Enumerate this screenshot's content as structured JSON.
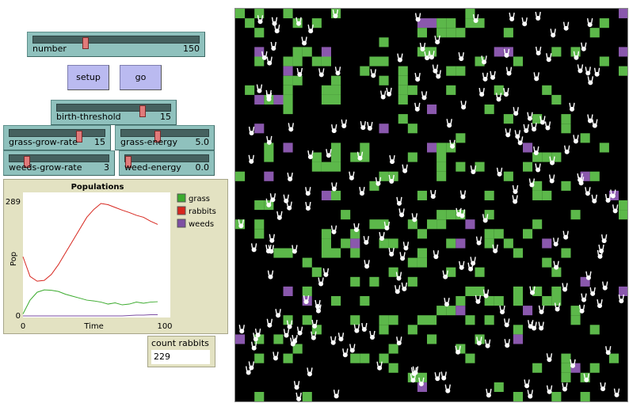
{
  "sliders": [
    {
      "label": "number",
      "value": 150
    },
    {
      "label": "birth-threshold",
      "value": 15
    },
    {
      "label": "grass-grow-rate",
      "value": 15
    },
    {
      "label": "grass-energy",
      "value": "5.0"
    },
    {
      "label": "weeds-grow-rate",
      "value": 3
    },
    {
      "label": "weed-energy",
      "value": "0.0"
    }
  ],
  "buttons": [
    "setup",
    "go"
  ],
  "monitor": {
    "label": "count rabbits",
    "value": 229
  },
  "chart_data": {
    "type": "line",
    "title": "Populations",
    "x_label": "Time",
    "y_label": "Pop",
    "x": [
      0,
      5,
      10,
      15,
      20,
      25,
      30,
      35,
      40,
      45,
      50,
      55,
      60,
      65,
      70,
      75,
      80,
      85,
      90,
      95
    ],
    "xlim": [
      0,
      100
    ],
    "xticks": [
      0,
      100
    ],
    "ylim": [
      0,
      289
    ],
    "yticks": [
      0,
      289
    ],
    "series": [
      {
        "name": "grass",
        "color": "#3cab2e",
        "values": [
          5,
          40,
          60,
          66,
          65,
          62,
          55,
          50,
          45,
          40,
          38,
          35,
          30,
          33,
          28,
          30,
          35,
          32,
          35,
          36
        ]
      },
      {
        "name": "rabbits",
        "color": "#d7261e",
        "values": [
          150,
          100,
          88,
          90,
          105,
          130,
          160,
          190,
          220,
          250,
          270,
          285,
          282,
          275,
          268,
          262,
          255,
          250,
          240,
          232
        ]
      },
      {
        "name": "weeds",
        "color": "#7d4fa3",
        "values": [
          0,
          0,
          0,
          0,
          0,
          0,
          0,
          0,
          0,
          0,
          0,
          0,
          0,
          0,
          0,
          1,
          2,
          2,
          3,
          3
        ]
      }
    ]
  }
}
